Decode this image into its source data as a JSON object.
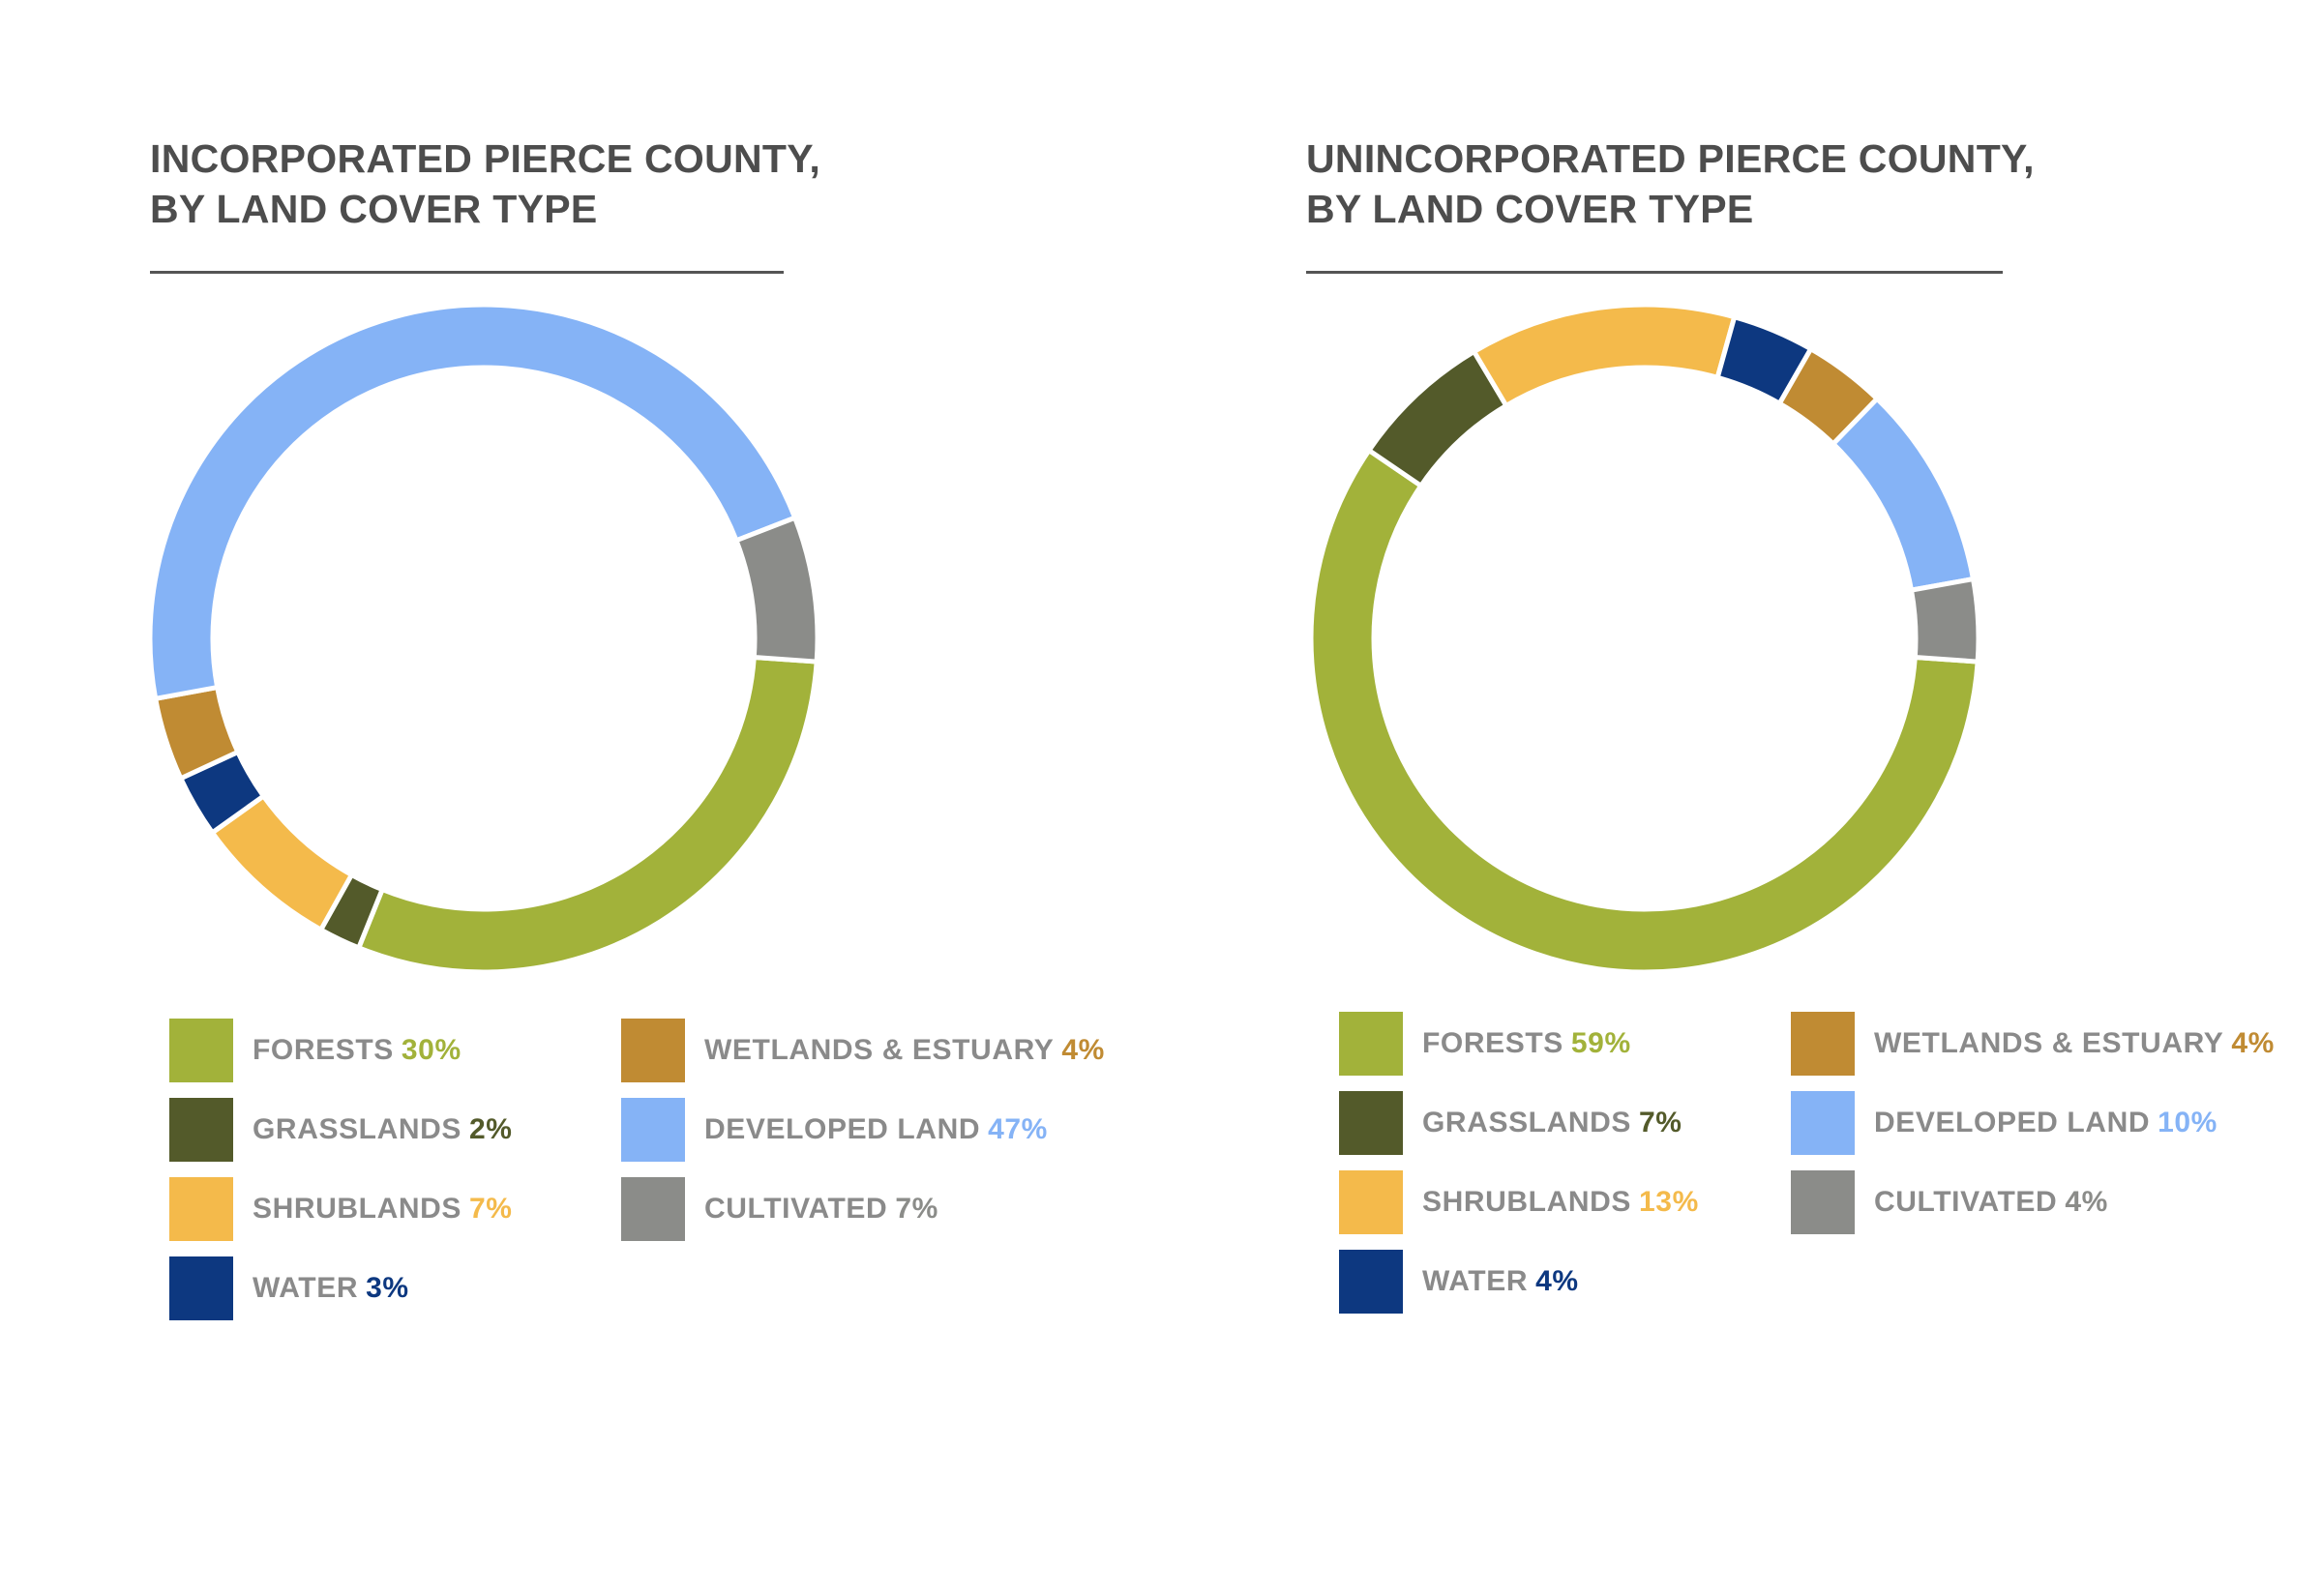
{
  "chart_data": [
    {
      "type": "pie",
      "variant": "donut",
      "title_bold": "INCORPORATED",
      "title_rest": "PIERCE COUNTY,",
      "title_line2": "BY LAND COVER TYPE",
      "categories": [
        "FORESTS",
        "GRASSLANDS",
        "SHRUBLANDS",
        "WATER",
        "WETLANDS & ESTUARY",
        "DEVELOPED LAND",
        "CULTIVATED"
      ],
      "values": [
        30,
        2,
        7,
        3,
        4,
        47,
        7
      ],
      "labels": [
        "30%",
        "2%",
        "7%",
        "3%",
        "4%",
        "47%",
        "7%"
      ],
      "colors": [
        "#a2b23a",
        "#535a2a",
        "#f4ba4b",
        "#0d3880",
        "#c08b33",
        "#85b3f6",
        "#8b8c89"
      ],
      "start_angle_deg": 4,
      "direction": "clockwise"
    },
    {
      "type": "pie",
      "variant": "donut",
      "title_bold": "UNINCORPORATED",
      "title_rest": "PIERCE COUNTY,",
      "title_line2": "BY LAND COVER TYPE",
      "categories": [
        "FORESTS",
        "GRASSLANDS",
        "SHRUBLANDS",
        "WATER",
        "WETLANDS & ESTUARY",
        "DEVELOPED LAND",
        "CULTIVATED"
      ],
      "values": [
        59,
        7,
        13,
        4,
        4,
        10,
        4
      ],
      "labels": [
        "59%",
        "7%",
        "13%",
        "4%",
        "4%",
        "10%",
        "4%"
      ],
      "colors": [
        "#a2b23a",
        "#535a2a",
        "#f4ba4b",
        "#0d3880",
        "#c08b33",
        "#85b3f6",
        "#8b8c89"
      ],
      "start_angle_deg": 4,
      "direction": "clockwise"
    }
  ]
}
